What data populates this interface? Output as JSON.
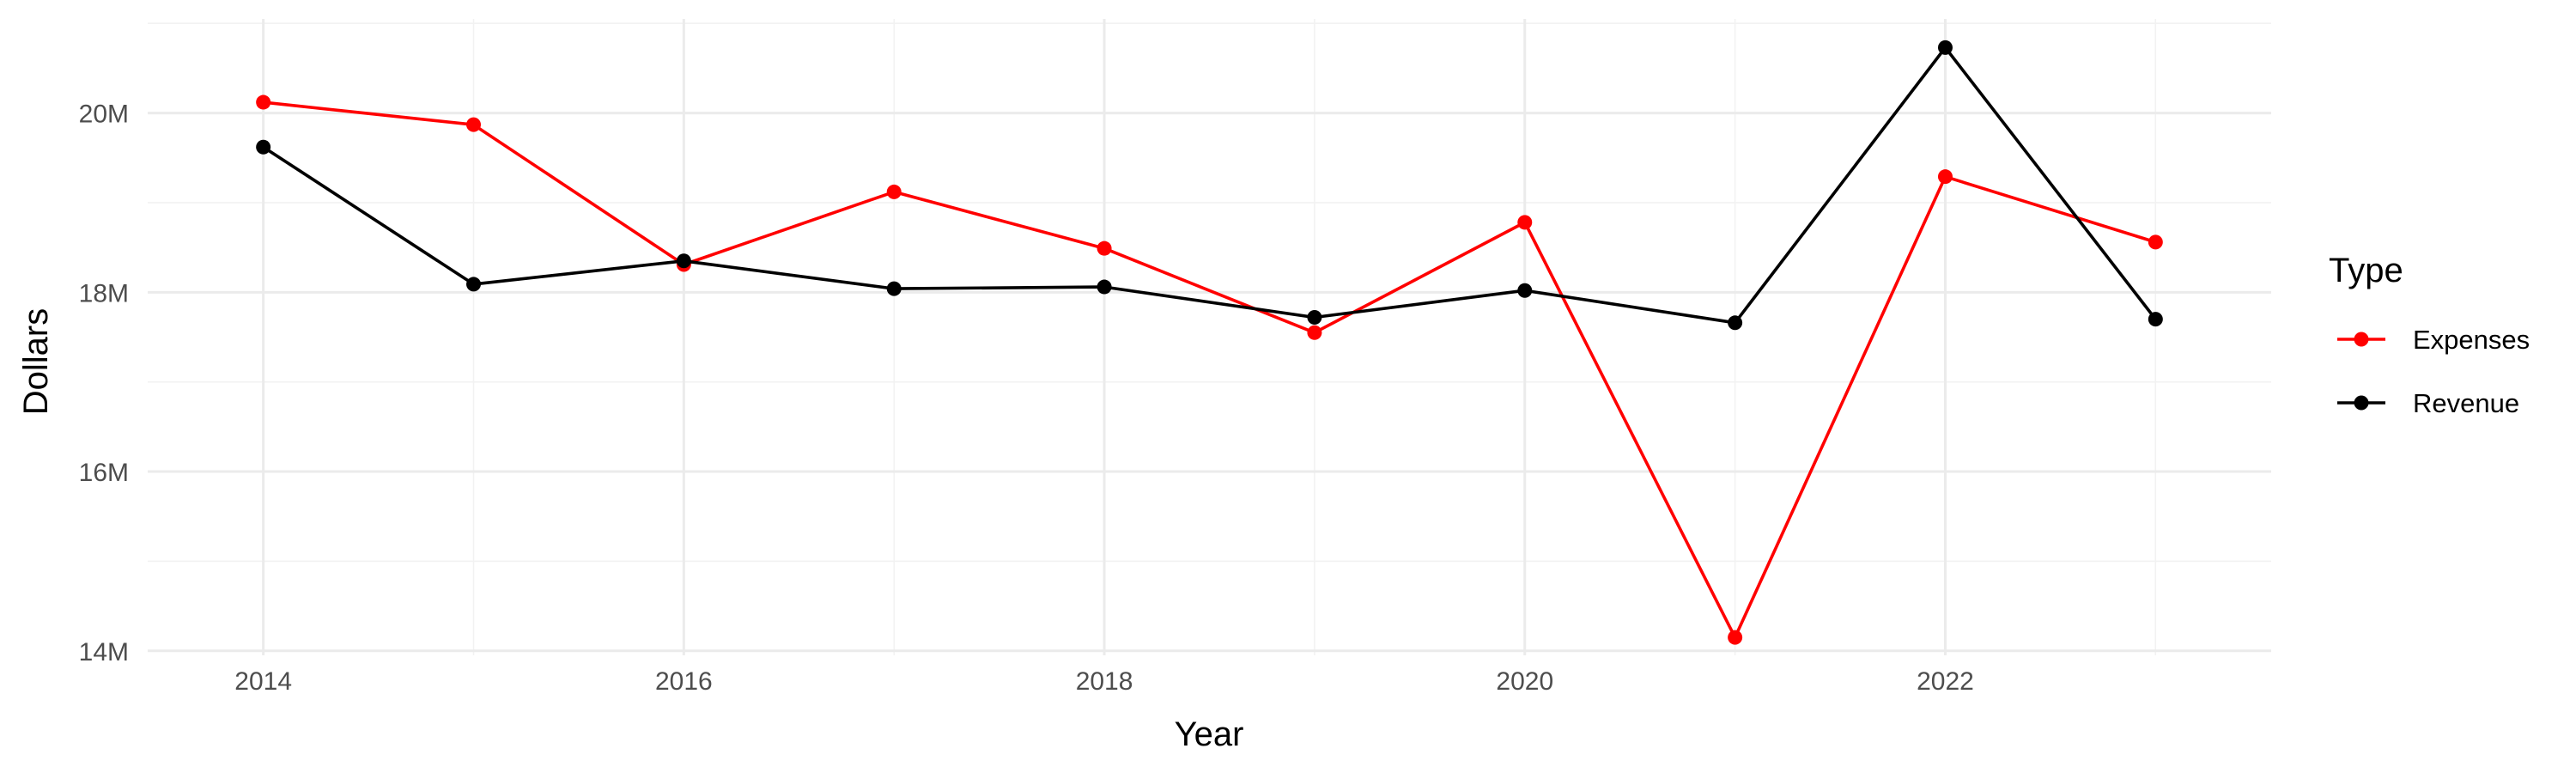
{
  "chart_data": {
    "type": "line",
    "title": "",
    "xlabel": "Year",
    "ylabel": "Dollars",
    "x": [
      2014,
      2015,
      2016,
      2017,
      2018,
      2019,
      2020,
      2021,
      2022,
      2023
    ],
    "xlim": [
      2013.45,
      2023.55
    ],
    "ylim": [
      13.95,
      21.05
    ],
    "x_ticks": [
      2014,
      2016,
      2018,
      2020,
      2022
    ],
    "x_tick_labels": [
      "2014",
      "2016",
      "2018",
      "2020",
      "2022"
    ],
    "y_ticks": [
      14,
      16,
      18,
      20
    ],
    "y_tick_labels": [
      "14M",
      "16M",
      "18M",
      "20M"
    ],
    "y_unit": "millions of dollars",
    "grid": true,
    "legend": {
      "title": "Type",
      "position": "right"
    },
    "series": [
      {
        "name": "Expenses",
        "color": "#ff0000",
        "values": [
          20.12,
          19.87,
          18.31,
          19.12,
          18.49,
          17.55,
          18.78,
          14.15,
          19.29,
          18.56
        ]
      },
      {
        "name": "Revenue",
        "color": "#000000",
        "values": [
          19.62,
          18.09,
          18.35,
          18.04,
          18.06,
          17.72,
          18.02,
          17.66,
          20.73,
          17.7
        ]
      }
    ]
  }
}
